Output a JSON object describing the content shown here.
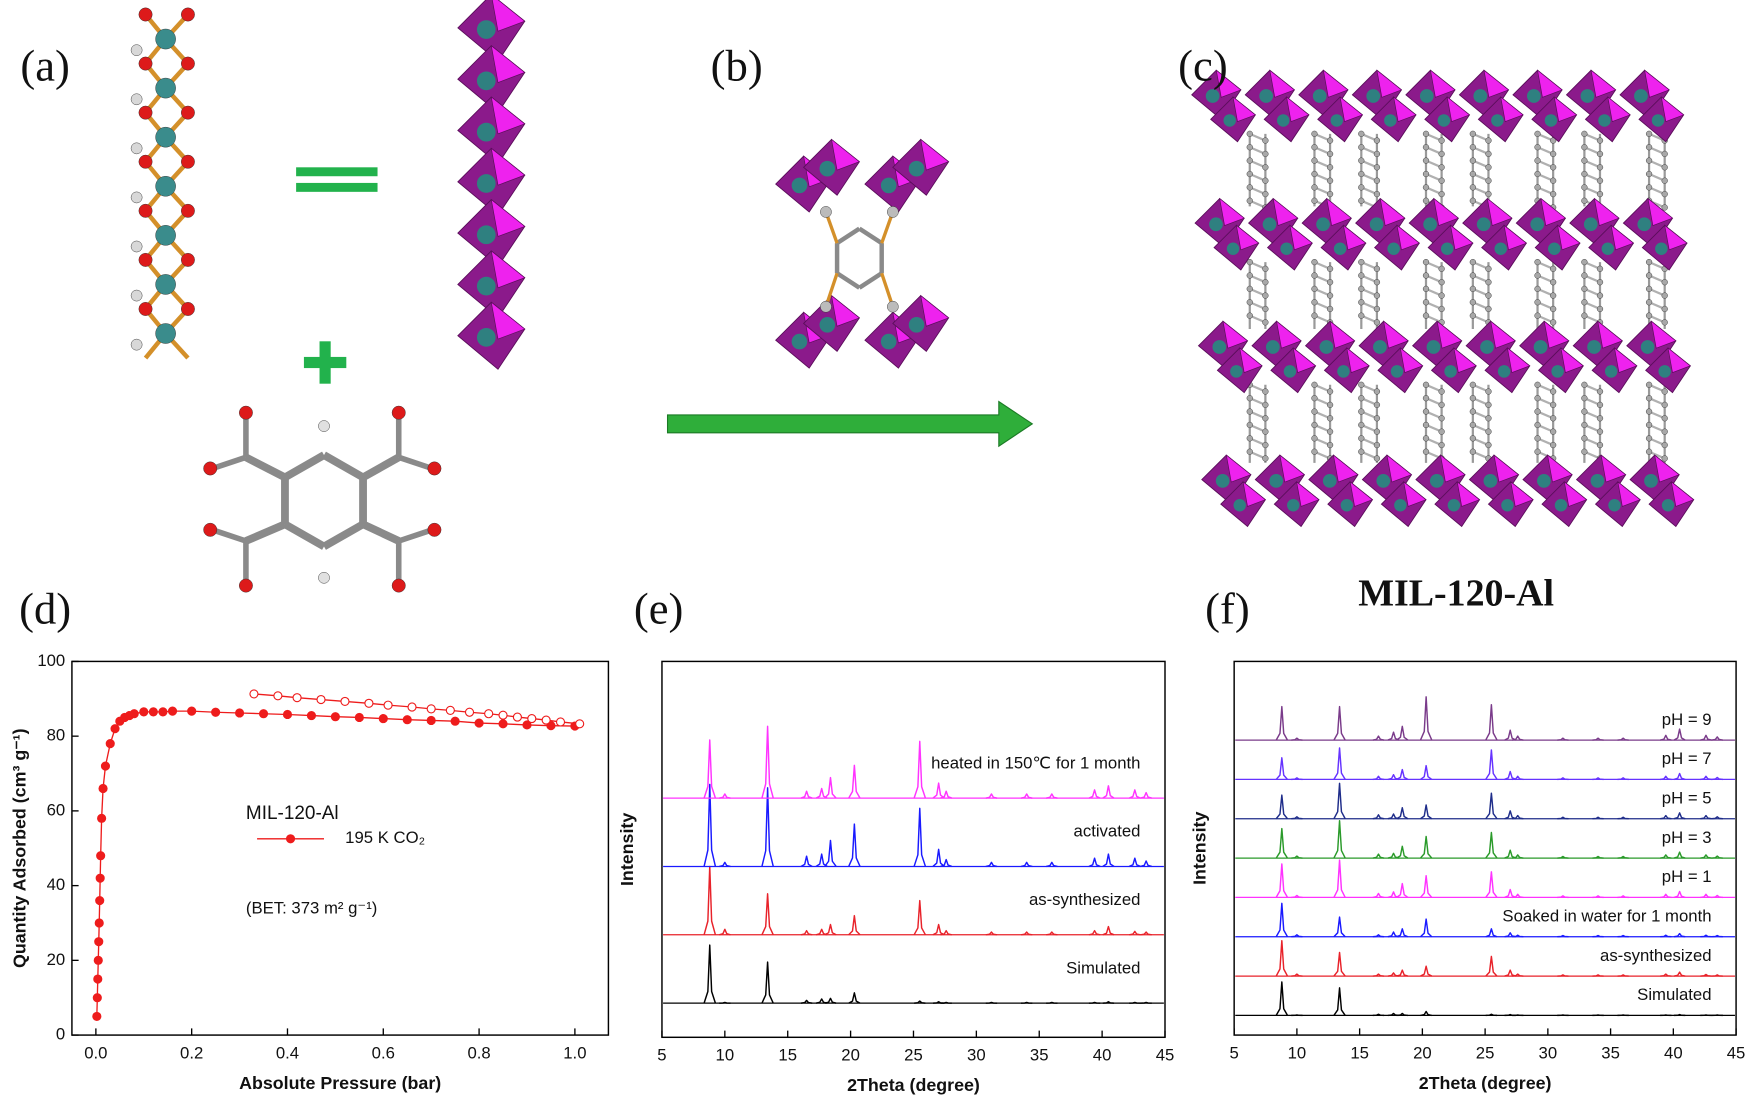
{
  "panels": [
    "(a)",
    "(b)",
    "(c)",
    "(d)",
    "(e)",
    "(f)"
  ],
  "structure_label": "MIL-120-Al",
  "chart_data": [
    {
      "type": "line",
      "xlabel": "Absolute Pressure (bar)",
      "ylabel": "Quantity Adsorbed (cm³ g⁻¹)",
      "legend_title": "MIL-120-Al",
      "annotation": "(BET: 373 m² g⁻¹)",
      "xlim": [
        -0.05,
        1.07
      ],
      "ylim": [
        0,
        100
      ],
      "xticks": [
        {
          "value": 0,
          "label": "0.0"
        },
        {
          "value": 0.2,
          "label": "0.2"
        },
        {
          "value": 0.4,
          "label": "0.4"
        },
        {
          "value": 0.6,
          "label": "0.6"
        },
        {
          "value": 0.8,
          "label": "0.8"
        },
        {
          "value": 1,
          "label": "1.0"
        }
      ],
      "yticks": [
        0,
        20,
        40,
        60,
        80,
        100
      ],
      "series": [
        {
          "name": "195 K CO₂",
          "color": "#ee1c1c",
          "marker": "filled",
          "x": [
            0.002,
            0.003,
            0.004,
            0.005,
            0.006,
            0.007,
            0.008,
            0.009,
            0.01,
            0.012,
            0.015,
            0.02,
            0.03,
            0.04,
            0.05,
            0.06,
            0.07,
            0.08,
            0.1,
            0.12,
            0.14,
            0.16,
            0.2,
            0.25,
            0.3,
            0.35,
            0.4,
            0.45,
            0.5,
            0.55,
            0.6,
            0.65,
            0.7,
            0.75,
            0.8,
            0.85,
            0.9,
            0.95,
            1.0
          ],
          "values": [
            5,
            10,
            15,
            20,
            25,
            30,
            36,
            42,
            48,
            58,
            66,
            72,
            78,
            82,
            84,
            85,
            85.5,
            86,
            86.5,
            86.5,
            86.5,
            86.7,
            86.7,
            86.4,
            86.2,
            86,
            85.8,
            85.5,
            85.2,
            85,
            84.7,
            84.4,
            84.2,
            84,
            83.5,
            83.3,
            83,
            82.8,
            82.7
          ]
        },
        {
          "color": "#ee1c1c",
          "marker": "open",
          "x": [
            0.33,
            0.38,
            0.42,
            0.47,
            0.52,
            0.57,
            0.61,
            0.66,
            0.7,
            0.74,
            0.78,
            0.82,
            0.85,
            0.88,
            0.91,
            0.94,
            0.97,
            1.01
          ],
          "values": [
            91.3,
            90.8,
            90.3,
            89.8,
            89.3,
            88.8,
            88.3,
            87.8,
            87.3,
            86.9,
            86.4,
            86,
            85.6,
            85.1,
            84.7,
            84.3,
            83.8,
            83.3
          ]
        }
      ]
    },
    {
      "type": "xrd",
      "xlabel": "2Theta (degree)",
      "ylabel": "Intensity",
      "xlim": [
        5,
        45
      ],
      "xticks": [
        5,
        10,
        15,
        20,
        25,
        30,
        35,
        40,
        45
      ],
      "x": [
        8.8,
        10.0,
        13.4,
        16.5,
        17.7,
        18.4,
        20.3,
        25.5,
        27.0,
        27.6,
        31.2,
        34.0,
        36.0,
        39.4,
        40.5,
        42.6,
        43.5
      ],
      "series": [
        {
          "name": "Simulated",
          "color": "#000000",
          "values": [
            85,
            1,
            60,
            4,
            6,
            7,
            15,
            3,
            2,
            1,
            1,
            1,
            1,
            1,
            2,
            1,
            1
          ]
        },
        {
          "name": "as-synthesized",
          "color": "#e8222a",
          "values": [
            100,
            8,
            60,
            6,
            8,
            15,
            28,
            50,
            15,
            6,
            4,
            4,
            4,
            6,
            12,
            5,
            4
          ]
        },
        {
          "name": "activated",
          "color": "#1a1aff",
          "values": [
            120,
            6,
            115,
            15,
            18,
            38,
            62,
            85,
            25,
            10,
            6,
            6,
            6,
            12,
            18,
            12,
            8
          ]
        },
        {
          "name": "heated in 150℃ for 1 month",
          "color": "#ff33ff",
          "values": [
            85,
            6,
            105,
            10,
            14,
            30,
            48,
            83,
            22,
            10,
            6,
            6,
            6,
            12,
            18,
            12,
            8
          ]
        }
      ]
    },
    {
      "type": "xrd",
      "xlabel": "2Theta (degree)",
      "ylabel": "Intensity",
      "xlim": [
        5,
        45
      ],
      "xticks": [
        5,
        10,
        15,
        20,
        25,
        30,
        35,
        40,
        45
      ],
      "x": [
        8.8,
        10.0,
        13.4,
        16.5,
        17.7,
        18.4,
        20.3,
        25.5,
        27.0,
        27.6,
        31.2,
        34.0,
        36.0,
        39.4,
        40.5,
        42.6,
        43.5
      ],
      "series": [
        {
          "name": "Simulated",
          "color": "#000000",
          "values": [
            85,
            1,
            70,
            3,
            5,
            5,
            10,
            3,
            2,
            1,
            1,
            1,
            1,
            1,
            2,
            1,
            1
          ]
        },
        {
          "name": "as-synthesized",
          "color": "#e8222a",
          "values": [
            90,
            5,
            60,
            5,
            8,
            15,
            25,
            50,
            15,
            5,
            3,
            3,
            3,
            5,
            10,
            4,
            3
          ]
        },
        {
          "name": "Soaked in water for 1 month",
          "color": "#1a1aff",
          "values": [
            85,
            5,
            50,
            5,
            12,
            20,
            45,
            20,
            10,
            4,
            3,
            3,
            3,
            4,
            8,
            4,
            3
          ]
        },
        {
          "name": "pH = 1",
          "color": "#ff33ff",
          "values": [
            85,
            5,
            95,
            10,
            14,
            35,
            55,
            65,
            20,
            8,
            4,
            4,
            4,
            8,
            15,
            8,
            5
          ]
        },
        {
          "name": "pH = 3",
          "color": "#2a9a2a",
          "values": [
            75,
            5,
            95,
            10,
            12,
            30,
            55,
            65,
            20,
            8,
            4,
            4,
            4,
            8,
            15,
            8,
            5
          ]
        },
        {
          "name": "pH = 5",
          "color": "#1f2d8a",
          "values": [
            60,
            5,
            90,
            10,
            12,
            28,
            35,
            65,
            20,
            8,
            4,
            4,
            4,
            8,
            15,
            8,
            5
          ]
        },
        {
          "name": "pH = 7",
          "color": "#6633ff",
          "values": [
            55,
            4,
            80,
            8,
            12,
            25,
            35,
            75,
            20,
            8,
            4,
            4,
            4,
            8,
            15,
            8,
            5
          ]
        },
        {
          "name": "pH = 9",
          "color": "#7a3b8a",
          "values": [
            85,
            5,
            85,
            10,
            20,
            35,
            110,
            90,
            25,
            10,
            5,
            5,
            5,
            12,
            28,
            12,
            8
          ]
        }
      ]
    }
  ]
}
